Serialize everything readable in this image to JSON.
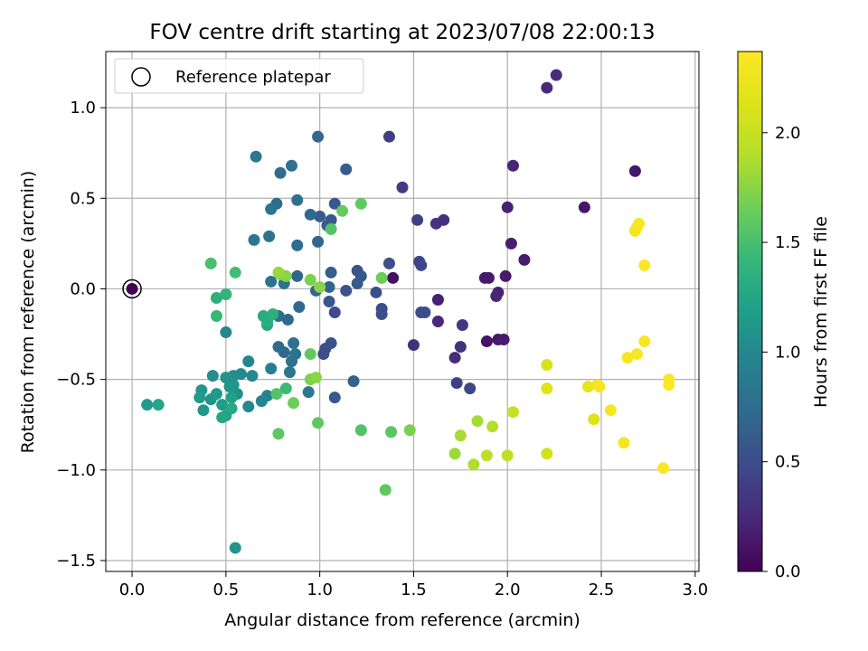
{
  "chart_data": {
    "type": "scatter",
    "title": "FOV centre drift starting at 2023/07/08 22:00:13",
    "xlabel": "Angular distance from reference (arcmin)",
    "ylabel": "Rotation from reference (arcmin)",
    "xlim": [
      -0.14,
      3.02
    ],
    "ylim": [
      -1.56,
      1.31
    ],
    "xticks": [
      0.0,
      0.5,
      1.0,
      1.5,
      2.0,
      2.5,
      3.0
    ],
    "xtick_labels": [
      "0.0",
      "0.5",
      "1.0",
      "1.5",
      "2.0",
      "2.5",
      "3.0"
    ],
    "yticks": [
      -1.5,
      -1.0,
      -0.5,
      0.0,
      0.5,
      1.0
    ],
    "ytick_labels": [
      "−1.5",
      "−1.0",
      "−0.5",
      "0.0",
      "0.5",
      "1.0"
    ],
    "grid": true,
    "legend": {
      "position": "top-left",
      "entries": [
        "Reference platepar"
      ]
    },
    "reference_point": {
      "x": 0.0,
      "y": 0.0
    },
    "colorbar": {
      "label": "Hours from first FF file",
      "colormap": "viridis",
      "range": [
        0.0,
        2.37
      ],
      "ticks": [
        0.0,
        0.5,
        1.0,
        1.5,
        2.0
      ],
      "tick_labels": [
        "0.0",
        "0.5",
        "1.0",
        "1.5",
        "2.0"
      ]
    },
    "points": [
      {
        "x": 2.21,
        "y": 1.11,
        "c": 0.25
      },
      {
        "x": 2.26,
        "y": 1.18,
        "c": 0.27
      },
      {
        "x": 2.68,
        "y": 0.65,
        "c": 0.12
      },
      {
        "x": 2.03,
        "y": 0.68,
        "c": 0.22
      },
      {
        "x": 2.0,
        "y": 0.45,
        "c": 0.2
      },
      {
        "x": 2.41,
        "y": 0.45,
        "c": 0.13
      },
      {
        "x": 2.02,
        "y": 0.25,
        "c": 0.18
      },
      {
        "x": 2.09,
        "y": 0.16,
        "c": 0.17
      },
      {
        "x": 1.99,
        "y": 0.07,
        "c": 0.16
      },
      {
        "x": 1.88,
        "y": 0.06,
        "c": 0.15
      },
      {
        "x": 1.9,
        "y": 0.06,
        "c": 0.15
      },
      {
        "x": 1.95,
        "y": -0.02,
        "c": 0.2
      },
      {
        "x": 1.94,
        "y": -0.04,
        "c": 0.22
      },
      {
        "x": 1.95,
        "y": -0.28,
        "c": 0.14
      },
      {
        "x": 1.89,
        "y": -0.29,
        "c": 0.12
      },
      {
        "x": 1.98,
        "y": -0.28,
        "c": 0.15
      },
      {
        "x": 1.62,
        "y": 0.36,
        "c": 0.32
      },
      {
        "x": 1.66,
        "y": 0.38,
        "c": 0.3
      },
      {
        "x": 1.52,
        "y": 0.38,
        "c": 0.42
      },
      {
        "x": 1.44,
        "y": 0.56,
        "c": 0.37
      },
      {
        "x": 1.37,
        "y": 0.84,
        "c": 0.4
      },
      {
        "x": 1.53,
        "y": 0.15,
        "c": 0.44
      },
      {
        "x": 1.54,
        "y": 0.13,
        "c": 0.46
      },
      {
        "x": 1.39,
        "y": 0.06,
        "c": 0.09
      },
      {
        "x": 1.63,
        "y": -0.06,
        "c": 0.2
      },
      {
        "x": 1.63,
        "y": -0.18,
        "c": 0.25
      },
      {
        "x": 1.54,
        "y": -0.13,
        "c": 0.5
      },
      {
        "x": 1.56,
        "y": -0.13,
        "c": 0.5
      },
      {
        "x": 1.5,
        "y": -0.31,
        "c": 0.3
      },
      {
        "x": 1.76,
        "y": -0.2,
        "c": 0.35
      },
      {
        "x": 1.75,
        "y": -0.32,
        "c": 0.3
      },
      {
        "x": 1.72,
        "y": -0.38,
        "c": 0.28
      },
      {
        "x": 1.73,
        "y": -0.52,
        "c": 0.42
      },
      {
        "x": 1.8,
        "y": -0.55,
        "c": 0.45
      },
      {
        "x": 1.37,
        "y": 0.14,
        "c": 0.52
      },
      {
        "x": 1.3,
        "y": -0.02,
        "c": 0.52
      },
      {
        "x": 1.33,
        "y": -0.11,
        "c": 0.5
      },
      {
        "x": 1.33,
        "y": -0.14,
        "c": 0.52
      },
      {
        "x": 1.2,
        "y": 0.1,
        "c": 0.55
      },
      {
        "x": 1.22,
        "y": 0.07,
        "c": 0.58
      },
      {
        "x": 1.2,
        "y": 0.03,
        "c": 0.6
      },
      {
        "x": 1.14,
        "y": -0.01,
        "c": 0.55
      },
      {
        "x": 1.08,
        "y": -0.13,
        "c": 0.5
      },
      {
        "x": 1.05,
        "y": -0.07,
        "c": 0.6
      },
      {
        "x": 1.06,
        "y": -0.3,
        "c": 0.55
      },
      {
        "x": 1.03,
        "y": -0.33,
        "c": 0.52
      },
      {
        "x": 1.02,
        "y": -0.36,
        "c": 0.5
      },
      {
        "x": 1.08,
        "y": -0.6,
        "c": 0.58
      },
      {
        "x": 1.18,
        "y": -0.51,
        "c": 0.66
      },
      {
        "x": 1.14,
        "y": 0.66,
        "c": 0.62
      },
      {
        "x": 1.08,
        "y": 0.47,
        "c": 0.58
      },
      {
        "x": 1.06,
        "y": 0.38,
        "c": 0.58
      },
      {
        "x": 1.04,
        "y": 0.35,
        "c": 0.6
      },
      {
        "x": 1.0,
        "y": 0.4,
        "c": 0.62
      },
      {
        "x": 0.99,
        "y": 0.84,
        "c": 0.7
      },
      {
        "x": 0.95,
        "y": 0.41,
        "c": 0.7
      },
      {
        "x": 0.99,
        "y": 0.26,
        "c": 0.72
      },
      {
        "x": 0.98,
        "y": -0.01,
        "c": 0.7
      },
      {
        "x": 1.06,
        "y": 0.09,
        "c": 0.64
      },
      {
        "x": 1.05,
        "y": 0.01,
        "c": 0.68
      },
      {
        "x": 0.88,
        "y": 0.07,
        "c": 0.68
      },
      {
        "x": 0.89,
        "y": -0.1,
        "c": 0.72
      },
      {
        "x": 0.83,
        "y": -0.17,
        "c": 0.72
      },
      {
        "x": 0.78,
        "y": -0.15,
        "c": 0.75
      },
      {
        "x": 0.78,
        "y": -0.32,
        "c": 0.75
      },
      {
        "x": 0.81,
        "y": -0.35,
        "c": 0.72
      },
      {
        "x": 0.86,
        "y": -0.3,
        "c": 0.78
      },
      {
        "x": 0.87,
        "y": -0.36,
        "c": 0.8
      },
      {
        "x": 0.85,
        "y": -0.4,
        "c": 0.8
      },
      {
        "x": 0.84,
        "y": -0.46,
        "c": 0.85
      },
      {
        "x": 0.94,
        "y": -0.57,
        "c": 0.85
      },
      {
        "x": 0.77,
        "y": 0.47,
        "c": 0.75
      },
      {
        "x": 0.79,
        "y": 0.64,
        "c": 0.75
      },
      {
        "x": 0.85,
        "y": 0.68,
        "c": 0.78
      },
      {
        "x": 0.88,
        "y": 0.49,
        "c": 0.78
      },
      {
        "x": 0.88,
        "y": 0.24,
        "c": 0.75
      },
      {
        "x": 0.74,
        "y": 0.44,
        "c": 0.82
      },
      {
        "x": 0.73,
        "y": 0.29,
        "c": 0.82
      },
      {
        "x": 0.65,
        "y": 0.27,
        "c": 0.85
      },
      {
        "x": 0.66,
        "y": 0.73,
        "c": 0.85
      },
      {
        "x": 0.74,
        "y": 0.04,
        "c": 0.8
      },
      {
        "x": 0.81,
        "y": 0.03,
        "c": 0.82
      },
      {
        "x": 0.74,
        "y": -0.44,
        "c": 0.9
      },
      {
        "x": 0.72,
        "y": -0.59,
        "c": 0.95
      },
      {
        "x": 0.69,
        "y": -0.62,
        "c": 0.98
      },
      {
        "x": 0.62,
        "y": -0.65,
        "c": 1.0
      },
      {
        "x": 0.64,
        "y": -0.48,
        "c": 1.0
      },
      {
        "x": 0.62,
        "y": -0.4,
        "c": 0.98
      },
      {
        "x": 0.58,
        "y": -0.47,
        "c": 1.0
      },
      {
        "x": 0.56,
        "y": -0.58,
        "c": 1.05
      },
      {
        "x": 0.54,
        "y": -0.48,
        "c": 1.05
      },
      {
        "x": 0.54,
        "y": -0.53,
        "c": 1.1
      },
      {
        "x": 0.52,
        "y": -0.54,
        "c": 1.12
      },
      {
        "x": 0.5,
        "y": -0.49,
        "c": 1.1
      },
      {
        "x": 0.5,
        "y": -0.24,
        "c": 1.0
      },
      {
        "x": 0.43,
        "y": -0.48,
        "c": 1.05
      },
      {
        "x": 0.42,
        "y": -0.61,
        "c": 1.1
      },
      {
        "x": 0.37,
        "y": -0.56,
        "c": 1.12
      },
      {
        "x": 0.36,
        "y": -0.6,
        "c": 1.15
      },
      {
        "x": 0.38,
        "y": -0.67,
        "c": 1.12
      },
      {
        "x": 0.45,
        "y": -0.58,
        "c": 1.15
      },
      {
        "x": 0.48,
        "y": -0.64,
        "c": 1.18
      },
      {
        "x": 0.53,
        "y": -0.6,
        "c": 1.2
      },
      {
        "x": 0.5,
        "y": -0.7,
        "c": 1.22
      },
      {
        "x": 0.48,
        "y": -0.71,
        "c": 1.25
      },
      {
        "x": 0.53,
        "y": -0.66,
        "c": 1.28
      },
      {
        "x": 0.55,
        "y": -1.43,
        "c": 1.1
      },
      {
        "x": 0.08,
        "y": -0.64,
        "c": 1.15
      },
      {
        "x": 0.14,
        "y": -0.64,
        "c": 1.25
      },
      {
        "x": 0.7,
        "y": -0.15,
        "c": 1.3
      },
      {
        "x": 0.72,
        "y": -0.2,
        "c": 1.28
      },
      {
        "x": 0.75,
        "y": -0.14,
        "c": 1.35
      },
      {
        "x": 0.72,
        "y": -0.18,
        "c": 1.33
      },
      {
        "x": 0.45,
        "y": -0.05,
        "c": 1.35
      },
      {
        "x": 0.5,
        "y": -0.03,
        "c": 1.4
      },
      {
        "x": 0.45,
        "y": -0.15,
        "c": 1.42
      },
      {
        "x": 0.42,
        "y": 0.14,
        "c": 1.5
      },
      {
        "x": 0.55,
        "y": 0.09,
        "c": 1.48
      },
      {
        "x": 0.77,
        "y": -0.58,
        "c": 1.55
      },
      {
        "x": 0.78,
        "y": -0.8,
        "c": 1.6
      },
      {
        "x": 0.86,
        "y": -0.63,
        "c": 1.65
      },
      {
        "x": 0.82,
        "y": -0.55,
        "c": 1.45
      },
      {
        "x": 0.79,
        "y": 0.08,
        "c": 1.7
      },
      {
        "x": 0.82,
        "y": 0.07,
        "c": 1.75
      },
      {
        "x": 0.78,
        "y": 0.09,
        "c": 1.8
      },
      {
        "x": 0.95,
        "y": 0.05,
        "c": 1.7
      },
      {
        "x": 1.0,
        "y": 0.01,
        "c": 1.75
      },
      {
        "x": 0.95,
        "y": -0.36,
        "c": 1.6
      },
      {
        "x": 0.95,
        "y": -0.5,
        "c": 1.7
      },
      {
        "x": 0.98,
        "y": -0.49,
        "c": 1.75
      },
      {
        "x": 0.99,
        "y": -0.74,
        "c": 1.6
      },
      {
        "x": 1.06,
        "y": 0.33,
        "c": 1.55
      },
      {
        "x": 1.12,
        "y": 0.43,
        "c": 1.62
      },
      {
        "x": 1.22,
        "y": 0.47,
        "c": 1.6
      },
      {
        "x": 1.33,
        "y": 0.06,
        "c": 1.65
      },
      {
        "x": 1.22,
        "y": -0.78,
        "c": 1.55
      },
      {
        "x": 1.38,
        "y": -0.79,
        "c": 1.58
      },
      {
        "x": 1.48,
        "y": -0.78,
        "c": 1.7
      },
      {
        "x": 1.35,
        "y": -1.11,
        "c": 1.6
      },
      {
        "x": 1.72,
        "y": -0.91,
        "c": 1.82
      },
      {
        "x": 1.75,
        "y": -0.81,
        "c": 1.85
      },
      {
        "x": 1.82,
        "y": -0.97,
        "c": 1.88
      },
      {
        "x": 1.84,
        "y": -0.73,
        "c": 1.85
      },
      {
        "x": 1.89,
        "y": -0.92,
        "c": 1.95
      },
      {
        "x": 1.92,
        "y": -0.76,
        "c": 1.9
      },
      {
        "x": 2.0,
        "y": -0.92,
        "c": 1.95
      },
      {
        "x": 2.03,
        "y": -0.68,
        "c": 2.0
      },
      {
        "x": 2.21,
        "y": -0.91,
        "c": 2.05
      },
      {
        "x": 2.21,
        "y": -0.42,
        "c": 2.1
      },
      {
        "x": 2.21,
        "y": -0.55,
        "c": 2.15
      },
      {
        "x": 2.43,
        "y": -0.54,
        "c": 2.2
      },
      {
        "x": 2.46,
        "y": -0.72,
        "c": 2.15
      },
      {
        "x": 2.48,
        "y": -0.53,
        "c": 2.25
      },
      {
        "x": 2.49,
        "y": -0.54,
        "c": 2.3
      },
      {
        "x": 2.55,
        "y": -0.67,
        "c": 2.32
      },
      {
        "x": 2.62,
        "y": -0.85,
        "c": 2.3
      },
      {
        "x": 2.64,
        "y": -0.38,
        "c": 2.32
      },
      {
        "x": 2.69,
        "y": -0.36,
        "c": 2.33
      },
      {
        "x": 2.73,
        "y": -0.29,
        "c": 2.35
      },
      {
        "x": 2.83,
        "y": -0.99,
        "c": 2.35
      },
      {
        "x": 2.86,
        "y": -0.5,
        "c": 2.35
      },
      {
        "x": 2.86,
        "y": -0.53,
        "c": 2.36
      },
      {
        "x": 2.68,
        "y": 0.32,
        "c": 2.3
      },
      {
        "x": 2.69,
        "y": 0.34,
        "c": 2.32
      },
      {
        "x": 2.7,
        "y": 0.36,
        "c": 2.33
      },
      {
        "x": 2.73,
        "y": 0.13,
        "c": 2.35
      },
      {
        "x": 0.0,
        "y": 0.0,
        "c": 0.0
      }
    ]
  }
}
